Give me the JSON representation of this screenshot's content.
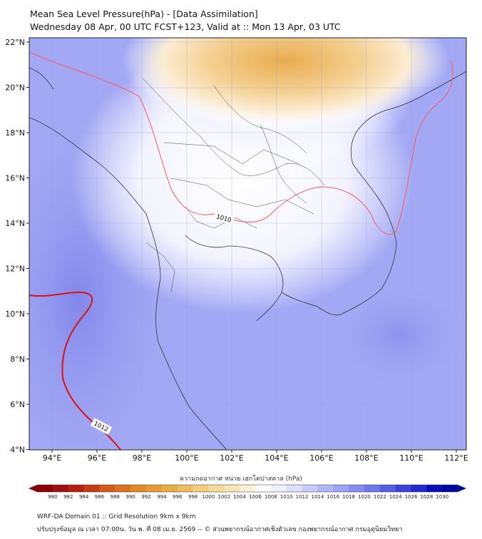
{
  "title": {
    "line1": "Mean Sea Level Pressure(hPa) - [Data Assimilation]",
    "line2": "Wednesday 08 Apr, 00 UTC FCST+123, Valid at :: Mon 13 Apr, 03 UTC"
  },
  "map": {
    "lon_ticks": [
      "94°E",
      "96°E",
      "98°E",
      "100°E",
      "102°E",
      "104°E",
      "106°E",
      "108°E",
      "110°E",
      "112°E"
    ],
    "lat_ticks": [
      "22°N",
      "20°N",
      "18°N",
      "16°N",
      "14°N",
      "12°N",
      "10°N",
      "8°N",
      "6°N",
      "4°N"
    ],
    "lon_range": [
      93,
      112.5
    ],
    "lat_range": [
      4,
      22.2
    ],
    "contour_labels": [
      "1010",
      "1012"
    ],
    "colors": {
      "high": "#e9b15a",
      "neutral": "#ffffff",
      "low": "#8f95ef",
      "contour_1010": "#ff5a5a",
      "contour_1012": "#e01010"
    }
  },
  "colorbar": {
    "title": "ความกดอากาศ หน่วย เฮกโตปาสคาล (hPa)",
    "ticks": [
      "980",
      "982",
      "984",
      "986",
      "988",
      "990",
      "992",
      "994",
      "996",
      "998",
      "1000",
      "1002",
      "1004",
      "1006",
      "1008",
      "1010",
      "1012",
      "1014",
      "1016",
      "1018",
      "1020",
      "1022",
      "1024",
      "1026",
      "1028",
      "1030"
    ],
    "colors": [
      "#8b0000",
      "#a01010",
      "#b52010",
      "#c63a10",
      "#d35a18",
      "#db7320",
      "#e08a2a",
      "#e49c33",
      "#e8ac44",
      "#ecbd5e",
      "#f0cc7b",
      "#f4d999",
      "#f7e4b6",
      "#fbf0d8",
      "#ffffff",
      "#eeefff",
      "#dcdefd",
      "#c7cafa",
      "#b2b6f6",
      "#9da2f2",
      "#878ded",
      "#6f76e8",
      "#565ee2",
      "#3b43d8",
      "#1f29cc",
      "#0510bb",
      "#000a9c"
    ]
  },
  "footer": {
    "line1": "WRF-DA Domain 01 :: Grid Resolution 9km x 9km",
    "line2": "ปรับปรุงข้อมูล ณ เวลา 07:00น. วัน พ. ที่ 08 เม.ย. 2569 -- © ส่วนพยากรณ์อากาศเชิงตัวเลข กองพยากรณ์อากาศ กรมอุตุนิยมวิทยา"
  }
}
